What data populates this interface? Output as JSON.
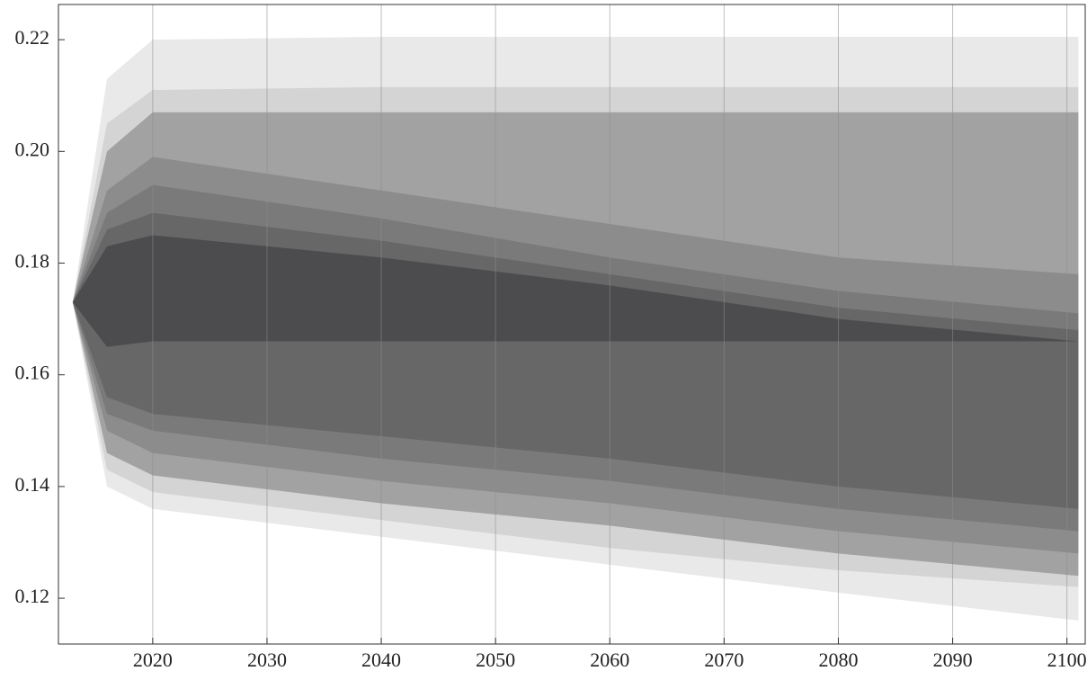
{
  "chart_data": {
    "type": "fan",
    "x": [
      2013,
      2016,
      2020,
      2040,
      2060,
      2080,
      2101
    ],
    "series": [
      {
        "color": "#e9e9ea",
        "upper": [
          0.173,
          0.213,
          0.22,
          0.2205,
          0.2205,
          0.2205,
          0.2205
        ],
        "lower": [
          0.173,
          0.14,
          0.136,
          0.131,
          0.126,
          0.121,
          0.116
        ]
      },
      {
        "color": "#d4d4d5",
        "upper": [
          0.173,
          0.205,
          0.211,
          0.2115,
          0.2115,
          0.2115,
          0.2115
        ],
        "lower": [
          0.173,
          0.143,
          0.139,
          0.134,
          0.129,
          0.125,
          0.122
        ]
      },
      {
        "color": "#a2a2a3",
        "upper": [
          0.173,
          0.2,
          0.207,
          0.207,
          0.207,
          0.207,
          0.207
        ],
        "lower": [
          0.173,
          0.146,
          0.142,
          0.137,
          0.133,
          0.128,
          0.124
        ]
      },
      {
        "color": "#8c8c8d",
        "upper": [
          0.173,
          0.193,
          0.199,
          0.193,
          0.187,
          0.181,
          0.178
        ],
        "lower": [
          0.173,
          0.15,
          0.146,
          0.141,
          0.137,
          0.132,
          0.128
        ]
      },
      {
        "color": "#7a7a7b",
        "upper": [
          0.173,
          0.189,
          0.194,
          0.188,
          0.181,
          0.175,
          0.171
        ],
        "lower": [
          0.173,
          0.153,
          0.15,
          0.145,
          0.141,
          0.136,
          0.132
        ]
      },
      {
        "color": "#676768",
        "upper": [
          0.173,
          0.186,
          0.189,
          0.184,
          0.178,
          0.172,
          0.168
        ],
        "lower": [
          0.173,
          0.156,
          0.153,
          0.149,
          0.145,
          0.14,
          0.136
        ]
      },
      {
        "color": "#4c4c4e",
        "upper": [
          0.173,
          0.183,
          0.185,
          0.181,
          0.176,
          0.17,
          0.166
        ],
        "lower": [
          0.173,
          0.165,
          0.166,
          0.166,
          0.166,
          0.166,
          0.166
        ]
      }
    ],
    "xlim": [
      2011.75,
      2101.6
    ],
    "ylim": [
      0.1118,
      0.2263
    ],
    "xticks": [
      2020,
      2030,
      2040,
      2050,
      2060,
      2070,
      2080,
      2090,
      2100
    ],
    "yticks": [
      0.12,
      0.14,
      0.16,
      0.18,
      {
        "value": 0.2,
        "label": "0.20"
      },
      0.22
    ],
    "grid": true
  }
}
